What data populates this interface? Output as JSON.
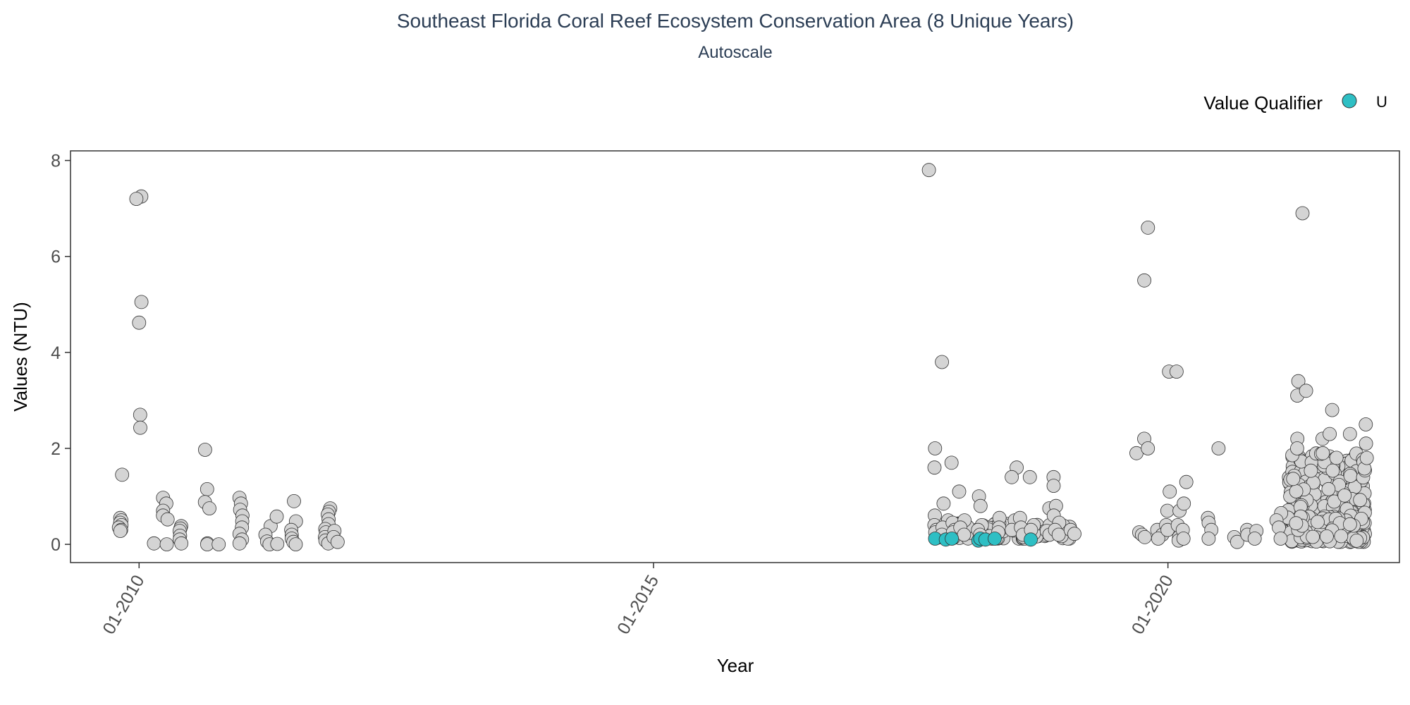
{
  "chart_data": {
    "type": "scatter",
    "title": "Southeast Florida Coral Reef Ecosystem Conservation Area (8 Unique Years)",
    "subtitle": "Autoscale",
    "xlabel": "Year",
    "ylabel": "Values (NTU)",
    "x_ticks": [
      "2010-01",
      "2015-01",
      "2020-01"
    ],
    "x_tick_labels": [
      "01-2010",
      "01-2015",
      "01-2020"
    ],
    "y_ticks": [
      0,
      2,
      4,
      6,
      8
    ],
    "y_tick_labels": [
      "0",
      "2",
      "4",
      "6",
      "8"
    ],
    "xlim": [
      "2009-05",
      "2022-04"
    ],
    "ylim": [
      -0.38,
      8.2
    ],
    "grid": false,
    "legend": {
      "title": "Value Qualifier",
      "position": "top-right",
      "entries": [
        {
          "label": "U",
          "color": "#2ebfc4"
        }
      ]
    },
    "colors": {
      "default_point": "#d4d4d4",
      "qualified_point": "#2ebfc4",
      "point_edge": "#333333",
      "title": "#2c3e55"
    },
    "series": [
      {
        "qualifier": "",
        "points": [
          [
            "2009-11",
            1.45
          ],
          [
            "2009-11",
            0.55
          ],
          [
            "2009-11",
            0.5
          ],
          [
            "2009-11",
            0.45
          ],
          [
            "2009-11",
            0.4
          ],
          [
            "2009-11",
            0.35
          ],
          [
            "2009-11",
            0.3
          ],
          [
            "2009-11",
            0.28
          ],
          [
            "2010-01",
            7.25
          ],
          [
            "2010-01",
            7.2
          ],
          [
            "2010-01",
            5.05
          ],
          [
            "2010-01",
            4.62
          ],
          [
            "2010-01",
            2.7
          ],
          [
            "2010-01",
            2.43
          ],
          [
            "2010-04",
            0.97
          ],
          [
            "2010-04",
            0.85
          ],
          [
            "2010-04",
            0.7
          ],
          [
            "2010-04",
            0.6
          ],
          [
            "2010-04",
            0.52
          ],
          [
            "2010-03",
            0.02
          ],
          [
            "2010-04",
            0.0
          ],
          [
            "2010-06",
            0.38
          ],
          [
            "2010-06",
            0.33
          ],
          [
            "2010-06",
            0.28
          ],
          [
            "2010-06",
            0.18
          ],
          [
            "2010-06",
            0.1
          ],
          [
            "2010-06",
            0.02
          ],
          [
            "2010-09",
            1.97
          ],
          [
            "2010-09",
            1.15
          ],
          [
            "2010-09",
            0.88
          ],
          [
            "2010-09",
            0.75
          ],
          [
            "2010-09",
            0.02
          ],
          [
            "2010-09",
            0.0
          ],
          [
            "2010-10",
            0.0
          ],
          [
            "2011-01",
            0.97
          ],
          [
            "2011-01",
            0.85
          ],
          [
            "2011-01",
            0.72
          ],
          [
            "2011-01",
            0.6
          ],
          [
            "2011-01",
            0.48
          ],
          [
            "2011-01",
            0.35
          ],
          [
            "2011-01",
            0.22
          ],
          [
            "2011-01",
            0.1
          ],
          [
            "2011-01",
            0.02
          ],
          [
            "2011-04",
            0.38
          ],
          [
            "2011-04",
            0.2
          ],
          [
            "2011-04",
            0.06
          ],
          [
            "2011-04",
            0.0
          ],
          [
            "2011-05",
            0.58
          ],
          [
            "2011-05",
            0.01
          ],
          [
            "2011-07",
            0.9
          ],
          [
            "2011-07",
            0.48
          ],
          [
            "2011-07",
            0.3
          ],
          [
            "2011-07",
            0.2
          ],
          [
            "2011-07",
            0.12
          ],
          [
            "2011-07",
            0.05
          ],
          [
            "2011-07",
            0.0
          ],
          [
            "2011-11",
            0.75
          ],
          [
            "2011-11",
            0.68
          ],
          [
            "2011-11",
            0.62
          ],
          [
            "2011-11",
            0.52
          ],
          [
            "2011-11",
            0.42
          ],
          [
            "2011-11",
            0.32
          ],
          [
            "2011-11",
            0.25
          ],
          [
            "2011-11",
            0.15
          ],
          [
            "2011-11",
            0.08
          ],
          [
            "2011-11",
            0.02
          ],
          [
            "2011-12",
            0.28
          ],
          [
            "2011-12",
            0.15
          ],
          [
            "2011-12",
            0.05
          ],
          [
            "2017-09",
            7.8
          ],
          [
            "2017-10",
            2.0
          ],
          [
            "2017-10",
            1.6
          ],
          [
            "2017-10",
            0.6
          ],
          [
            "2017-10",
            0.4
          ],
          [
            "2017-10",
            0.3
          ],
          [
            "2017-10",
            0.25
          ],
          [
            "2017-11",
            3.8
          ],
          [
            "2017-11",
            0.85
          ],
          [
            "2017-11",
            0.5
          ],
          [
            "2017-11",
            0.35
          ],
          [
            "2017-11",
            0.2
          ],
          [
            "2017-12",
            1.7
          ],
          [
            "2017-12",
            0.45
          ],
          [
            "2017-12",
            0.3
          ],
          [
            "2017-12",
            0.25
          ],
          [
            "2018-01",
            1.1
          ],
          [
            "2018-01",
            0.5
          ],
          [
            "2018-01",
            0.35
          ],
          [
            "2018-01",
            0.2
          ],
          [
            "2018-03",
            1.0
          ],
          [
            "2018-03",
            0.8
          ],
          [
            "2018-03",
            0.4
          ],
          [
            "2018-03",
            0.3
          ],
          [
            "2018-03",
            0.2
          ],
          [
            "2018-05",
            0.55
          ],
          [
            "2018-05",
            0.35
          ],
          [
            "2018-05",
            0.25
          ],
          [
            "2018-07",
            1.6
          ],
          [
            "2018-07",
            1.4
          ],
          [
            "2018-07",
            0.5
          ],
          [
            "2018-07",
            0.3
          ],
          [
            "2018-08",
            0.55
          ],
          [
            "2018-08",
            0.35
          ],
          [
            "2018-08",
            0.2
          ],
          [
            "2018-09",
            1.4
          ],
          [
            "2018-09",
            0.4
          ],
          [
            "2018-09",
            0.3
          ],
          [
            "2018-11",
            0.75
          ],
          [
            "2018-11",
            0.4
          ],
          [
            "2018-11",
            0.28
          ],
          [
            "2018-11",
            0.2
          ],
          [
            "2018-12",
            1.4
          ],
          [
            "2018-12",
            1.22
          ],
          [
            "2018-12",
            0.8
          ],
          [
            "2018-12",
            0.6
          ],
          [
            "2018-12",
            0.45
          ],
          [
            "2018-12",
            0.3
          ],
          [
            "2018-12",
            0.2
          ],
          [
            "2019-02",
            0.3
          ],
          [
            "2019-02",
            0.22
          ],
          [
            "2019-09",
            1.9
          ],
          [
            "2019-10",
            5.5
          ],
          [
            "2019-10",
            2.2
          ],
          [
            "2019-10",
            0.25
          ],
          [
            "2019-10",
            0.2
          ],
          [
            "2019-10",
            0.15
          ],
          [
            "2019-11",
            6.6
          ],
          [
            "2019-11",
            2.0
          ],
          [
            "2019-12",
            0.3
          ],
          [
            "2019-12",
            0.2
          ],
          [
            "2019-12",
            0.12
          ],
          [
            "2020-01",
            3.6
          ],
          [
            "2020-01",
            1.1
          ],
          [
            "2020-01",
            0.7
          ],
          [
            "2020-01",
            0.4
          ],
          [
            "2020-01",
            0.3
          ],
          [
            "2020-02",
            3.6
          ],
          [
            "2020-02",
            0.7
          ],
          [
            "2020-02",
            0.4
          ],
          [
            "2020-02",
            0.15
          ],
          [
            "2020-02",
            0.08
          ],
          [
            "2020-03",
            1.3
          ],
          [
            "2020-03",
            0.85
          ],
          [
            "2020-03",
            0.3
          ],
          [
            "2020-03",
            0.12
          ],
          [
            "2020-06",
            0.55
          ],
          [
            "2020-06",
            0.45
          ],
          [
            "2020-06",
            0.3
          ],
          [
            "2020-06",
            0.12
          ],
          [
            "2020-07",
            2.0
          ],
          [
            "2020-09",
            0.15
          ],
          [
            "2020-09",
            0.05
          ],
          [
            "2020-10",
            0.3
          ],
          [
            "2020-10",
            0.2
          ],
          [
            "2020-11",
            0.28
          ],
          [
            "2020-11",
            0.12
          ],
          [
            "2021-02",
            0.65
          ],
          [
            "2021-02",
            0.5
          ],
          [
            "2021-02",
            0.35
          ],
          [
            "2021-02",
            0.12
          ],
          [
            "2021-04",
            3.4
          ],
          [
            "2021-04",
            3.1
          ],
          [
            "2021-04",
            2.2
          ],
          [
            "2021-04",
            2.0
          ],
          [
            "2021-05",
            6.9
          ],
          [
            "2021-05",
            3.2
          ],
          [
            "2021-07",
            2.2
          ],
          [
            "2021-07",
            1.9
          ],
          [
            "2021-08",
            2.8
          ],
          [
            "2021-08",
            2.3
          ],
          [
            "2021-10",
            2.3
          ],
          [
            "2021-12",
            2.5
          ],
          [
            "2021-12",
            2.1
          ],
          [
            "2021-12",
            1.8
          ]
        ]
      },
      {
        "qualifier": "U",
        "points": [
          [
            "2017-10",
            0.12
          ],
          [
            "2017-11",
            0.1
          ],
          [
            "2017-12",
            0.12
          ],
          [
            "2018-03",
            0.08
          ],
          [
            "2018-03",
            0.12
          ],
          [
            "2018-04",
            0.1
          ],
          [
            "2018-05",
            0.12
          ],
          [
            "2018-09",
            0.1
          ]
        ]
      }
    ],
    "dense_clusters": [
      {
        "x_start": "2017-10",
        "x_end": "2019-02",
        "y_low": 0.12,
        "y_high": 0.45,
        "count": 120
      },
      {
        "x_start": "2021-03",
        "x_end": "2021-12",
        "y_low": 0.08,
        "y_high": 1.9,
        "count": 320
      },
      {
        "x_start": "2021-03",
        "x_end": "2021-12",
        "y_low": 0.05,
        "y_high": 0.6,
        "count": 150
      }
    ]
  }
}
